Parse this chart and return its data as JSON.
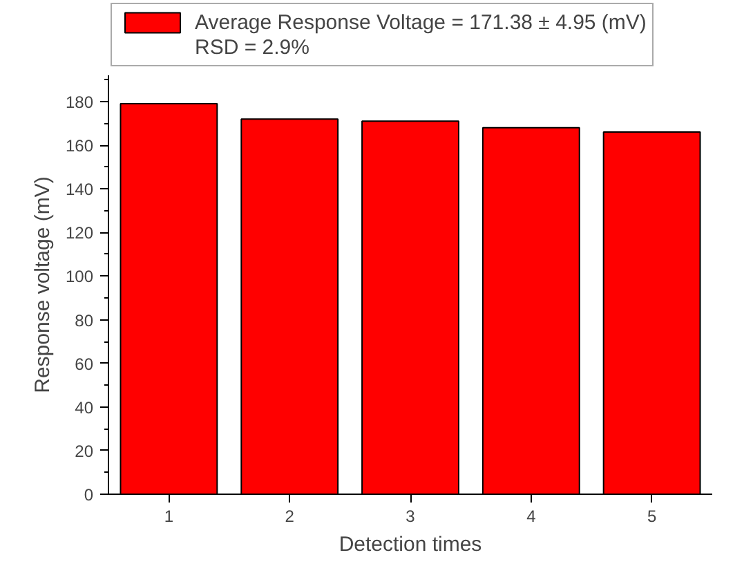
{
  "chart_data": {
    "type": "bar",
    "categories": [
      "1",
      "2",
      "3",
      "4",
      "5"
    ],
    "series": [
      {
        "name": "Average Response Voltage = 171.38 ± 4.95 (mV)",
        "color": "#ff0000",
        "values": [
          179,
          172,
          171,
          168,
          166
        ]
      }
    ],
    "annotations": [
      "RSD = 2.9%"
    ],
    "xlabel": "Detection times",
    "ylabel": "Response voltage (mV)",
    "ylim": [
      0,
      192
    ],
    "yticks": [
      0,
      20,
      40,
      60,
      80,
      100,
      120,
      140,
      160,
      180
    ],
    "legend": "top",
    "grid": false
  }
}
